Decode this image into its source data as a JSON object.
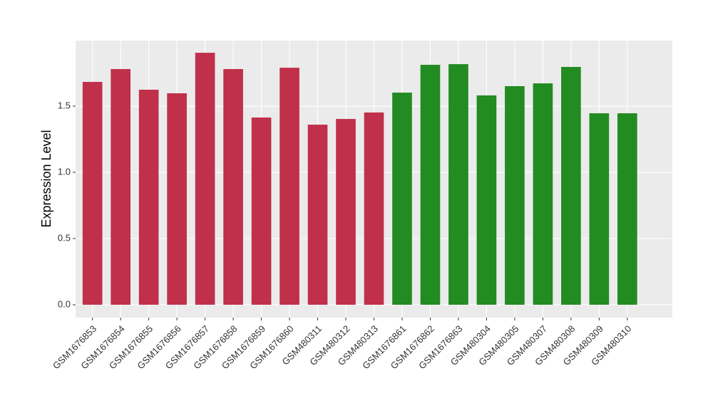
{
  "chart_data": {
    "type": "bar",
    "y_label": "Expression Level",
    "categories": [
      "GSM1676853",
      "GSM1676854",
      "GSM1676855",
      "GSM1676856",
      "GSM1676857",
      "GSM1676858",
      "GSM1676859",
      "GSM1676860",
      "GSM480311",
      "GSM480312",
      "GSM480313",
      "GSM1676861",
      "GSM1676862",
      "GSM1676863",
      "GSM480304",
      "GSM480305",
      "GSM480307",
      "GSM480308",
      "GSM480309",
      "GSM480310"
    ],
    "values": [
      1.683,
      1.78,
      1.624,
      1.597,
      1.903,
      1.78,
      1.414,
      1.79,
      1.36,
      1.403,
      1.452,
      1.602,
      1.812,
      1.817,
      1.581,
      1.651,
      1.672,
      1.796,
      1.446,
      1.446
    ],
    "colors": [
      "#c0304a",
      "#c0304a",
      "#c0304a",
      "#c0304a",
      "#c0304a",
      "#c0304a",
      "#c0304a",
      "#c0304a",
      "#c0304a",
      "#c0304a",
      "#c0304a",
      "#228b22",
      "#228b22",
      "#228b22",
      "#228b22",
      "#228b22",
      "#228b22",
      "#228b22",
      "#228b22",
      "#228b22"
    ],
    "ylim": [
      -0.097,
      1.995
    ],
    "yticks": [
      {
        "value": 0,
        "label": "0.0"
      },
      {
        "value": 0.5,
        "label": "0.5"
      },
      {
        "value": 1,
        "label": "1.0"
      },
      1.5
    ],
    "grid": true
  }
}
